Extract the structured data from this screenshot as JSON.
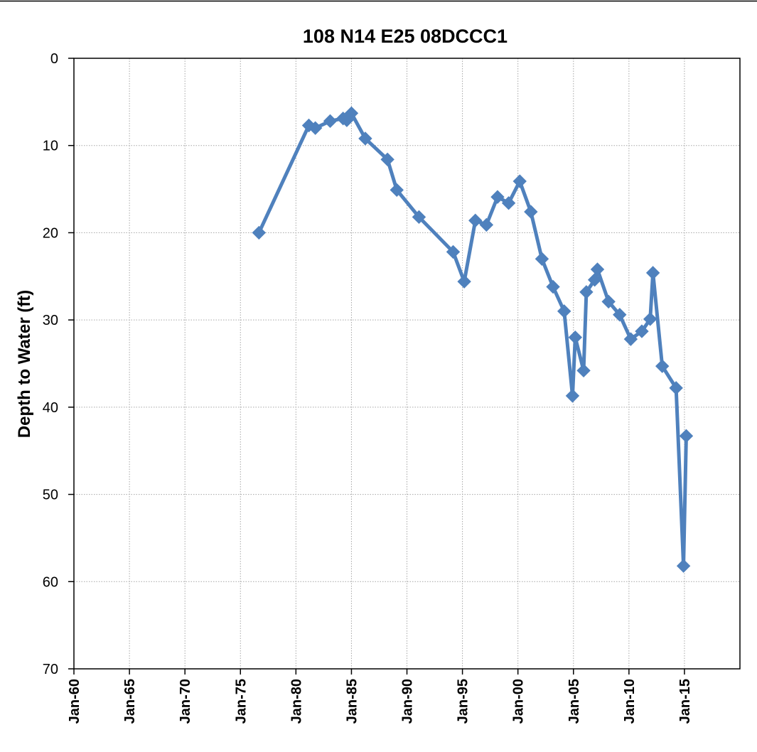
{
  "chart_data": {
    "type": "line",
    "title": "108  N14 E25 08DCCC1",
    "ylabel": "Depth to Water (ft)",
    "xlabel": "",
    "x_axis": "date",
    "xlim": [
      "1960-01-01",
      "2020-01-01"
    ],
    "ylim": [
      0,
      70
    ],
    "y_inverted": true,
    "grid": true,
    "legend": "none",
    "x_ticks": [
      "Jan-60",
      "Jan-65",
      "Jan-70",
      "Jan-75",
      "Jan-80",
      "Jan-85",
      "Jan-90",
      "Jan-95",
      "Jan-00",
      "Jan-05",
      "Jan-10",
      "Jan-15"
    ],
    "x_tick_dates": [
      "1960-01-01",
      "1965-01-01",
      "1970-01-01",
      "1975-01-01",
      "1980-01-01",
      "1985-01-01",
      "1990-01-01",
      "1995-01-01",
      "2000-01-01",
      "2005-01-01",
      "2010-01-01",
      "2015-01-01"
    ],
    "y_ticks": [
      0,
      10,
      20,
      30,
      40,
      50,
      60,
      70
    ],
    "colors": {
      "series": "#4F81BD",
      "grid": "#a6a6a6",
      "axis": "#000000"
    },
    "series": [
      {
        "marker": "diamond",
        "points": [
          {
            "x": "1976-09-01",
            "y": 20.0
          },
          {
            "x": "1981-03-01",
            "y": 7.7
          },
          {
            "x": "1981-10-01",
            "y": 8.0
          },
          {
            "x": "1983-02-01",
            "y": 7.2
          },
          {
            "x": "1984-04-01",
            "y": 6.9
          },
          {
            "x": "1984-08-01",
            "y": 7.1
          },
          {
            "x": "1985-01-01",
            "y": 6.3
          },
          {
            "x": "1986-04-01",
            "y": 9.2
          },
          {
            "x": "1988-04-01",
            "y": 11.6
          },
          {
            "x": "1989-02-01",
            "y": 15.1
          },
          {
            "x": "1991-02-01",
            "y": 18.2
          },
          {
            "x": "1994-03-01",
            "y": 22.2
          },
          {
            "x": "1995-03-01",
            "y": 25.6
          },
          {
            "x": "1996-03-01",
            "y": 18.6
          },
          {
            "x": "1997-03-01",
            "y": 19.1
          },
          {
            "x": "1998-03-01",
            "y": 15.9
          },
          {
            "x": "1999-03-01",
            "y": 16.6
          },
          {
            "x": "2000-03-01",
            "y": 14.1
          },
          {
            "x": "2001-03-01",
            "y": 17.6
          },
          {
            "x": "2002-03-01",
            "y": 23.0
          },
          {
            "x": "2003-03-01",
            "y": 26.2
          },
          {
            "x": "2004-03-01",
            "y": 29.0
          },
          {
            "x": "2004-12-01",
            "y": 38.7
          },
          {
            "x": "2005-03-01",
            "y": 32.0
          },
          {
            "x": "2005-12-01",
            "y": 35.8
          },
          {
            "x": "2006-03-01",
            "y": 26.8
          },
          {
            "x": "2006-12-01",
            "y": 25.4
          },
          {
            "x": "2007-03-01",
            "y": 24.2
          },
          {
            "x": "2008-03-01",
            "y": 27.9
          },
          {
            "x": "2009-03-01",
            "y": 29.4
          },
          {
            "x": "2010-03-01",
            "y": 32.2
          },
          {
            "x": "2011-03-01",
            "y": 31.3
          },
          {
            "x": "2011-12-01",
            "y": 29.9
          },
          {
            "x": "2012-03-01",
            "y": 24.6
          },
          {
            "x": "2013-01-01",
            "y": 35.3
          },
          {
            "x": "2014-04-01",
            "y": 37.8
          },
          {
            "x": "2014-12-01",
            "y": 58.2
          },
          {
            "x": "2015-03-01",
            "y": 43.3
          }
        ]
      }
    ]
  }
}
